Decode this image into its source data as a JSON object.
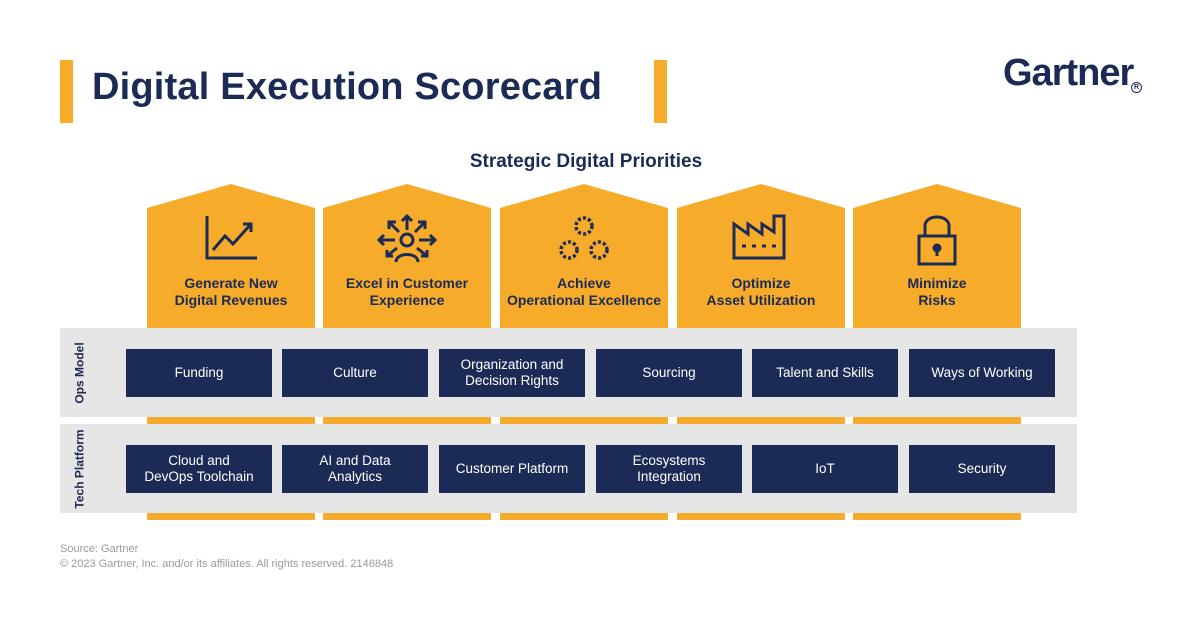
{
  "header": {
    "title": "Digital Execution Scorecard",
    "logo": "Gartner",
    "logo_mark": "R"
  },
  "diagram": {
    "heading": "Strategic Digital Priorities",
    "priorities": [
      {
        "line1": "Generate New",
        "line2": "Digital Revenues",
        "icon": "growth-chart-icon"
      },
      {
        "line1": "Excel in Customer",
        "line2": "Experience",
        "icon": "customer-arrows-icon"
      },
      {
        "line1": "Achieve",
        "line2": "Operational Excellence",
        "icon": "gears-icon"
      },
      {
        "line1": "Optimize",
        "line2": "Asset Utilization",
        "icon": "factory-icon"
      },
      {
        "line1": "Minimize",
        "line2": "Risks",
        "icon": "lock-icon"
      }
    ],
    "ops_model": {
      "label": "Ops Model",
      "items": [
        {
          "line1": "Funding",
          "line2": ""
        },
        {
          "line1": "Culture",
          "line2": ""
        },
        {
          "line1": "Organization and",
          "line2": "Decision Rights"
        },
        {
          "line1": "Sourcing",
          "line2": ""
        },
        {
          "line1": "Talent and Skills",
          "line2": ""
        },
        {
          "line1": "Ways of Working",
          "line2": ""
        }
      ]
    },
    "tech_platform": {
      "label": "Tech Platform",
      "items": [
        {
          "line1": "Cloud and",
          "line2": "DevOps Toolchain"
        },
        {
          "line1": "AI and Data",
          "line2": "Analytics"
        },
        {
          "line1": "Customer Platform",
          "line2": ""
        },
        {
          "line1": "Ecosystems",
          "line2": "Integration"
        },
        {
          "line1": "IoT",
          "line2": ""
        },
        {
          "line1": "Security",
          "line2": ""
        }
      ]
    },
    "colors": {
      "navy": "#1B2B56",
      "gold": "#F7AB2A",
      "band": "#E6E6E6"
    }
  },
  "footer": {
    "source": "Source: Gartner",
    "copyright": "© 2023 Gartner, Inc. and/or its affiliates. All rights reserved. 2146848"
  }
}
